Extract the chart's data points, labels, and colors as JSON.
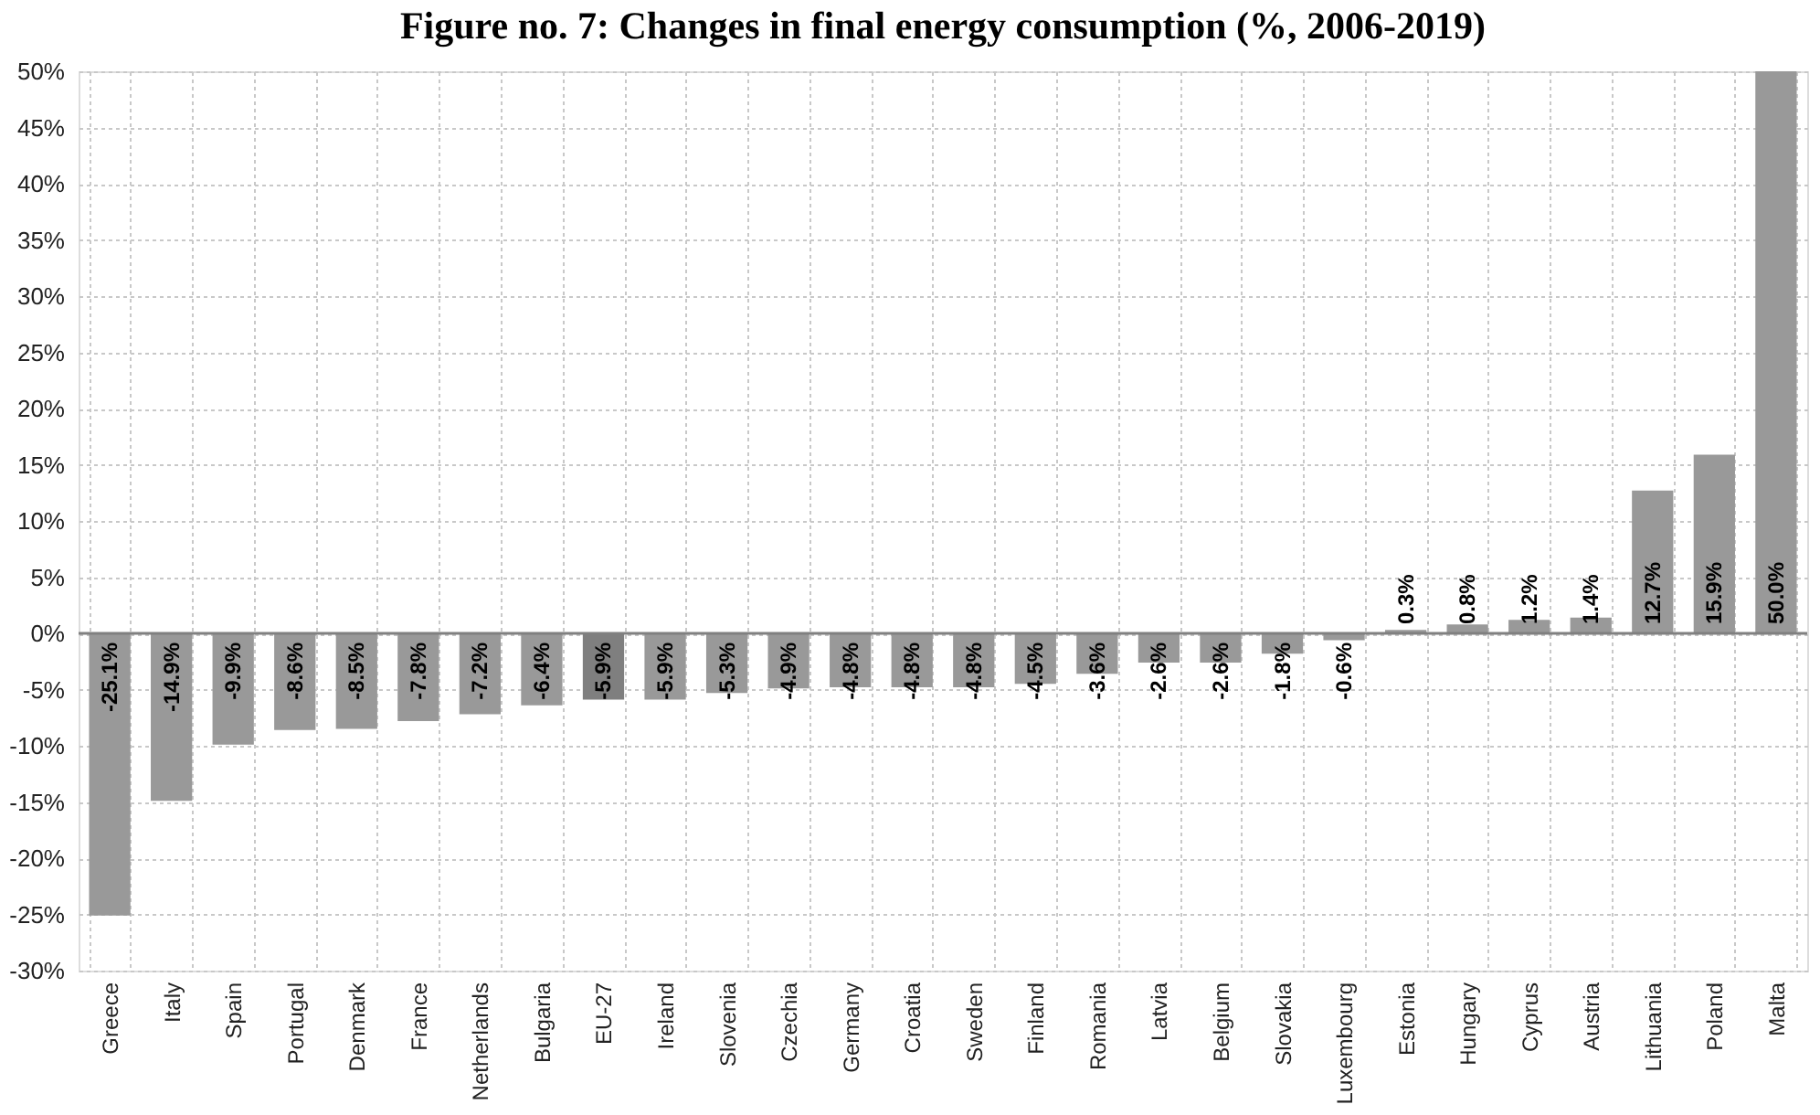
{
  "chart_data": {
    "type": "bar",
    "title": "Figure no. 7: Changes in final energy consumption (%, 2006-2019)",
    "categories": [
      "Greece",
      "Italy",
      "Spain",
      "Portugal",
      "Denmark",
      "France",
      "Netherlands",
      "Bulgaria",
      "EU-27",
      "Ireland",
      "Slovenia",
      "Czechia",
      "Germany",
      "Croatia",
      "Sweden",
      "Finland",
      "Romania",
      "Latvia",
      "Belgium",
      "Slovakia",
      "Luxembourg",
      "Estonia",
      "Hungary",
      "Cyprus",
      "Austria",
      "Lithuania",
      "Poland",
      "Malta"
    ],
    "values": [
      -25.1,
      -14.9,
      -9.9,
      -8.6,
      -8.5,
      -7.8,
      -7.2,
      -6.4,
      -5.9,
      -5.9,
      -5.3,
      -4.9,
      -4.8,
      -4.8,
      -4.8,
      -4.5,
      -3.6,
      -2.6,
      -2.6,
      -1.8,
      -0.6,
      0.3,
      0.8,
      1.2,
      1.4,
      12.7,
      15.9,
      50.0
    ],
    "value_labels": [
      "-25.1%",
      "-14.9%",
      "-9.9%",
      "-8.6%",
      "-8.5%",
      "-7.8%",
      "-7.2%",
      "-6.4%",
      "-5.9%",
      "-5.9%",
      "-5.3%",
      "-4.9%",
      "-4.8%",
      "-4.8%",
      "-4.8%",
      "-4.5%",
      "-3.6%",
      "-2.6%",
      "-2.6%",
      "-1.8%",
      "-0.6%",
      "0.3%",
      "0.8%",
      "1.2%",
      "1.4%",
      "12.7%",
      "15.9%",
      "50.0%"
    ],
    "colors": [
      "#999999",
      "#999999",
      "#999999",
      "#999999",
      "#999999",
      "#999999",
      "#999999",
      "#999999",
      "#7f7f7f",
      "#999999",
      "#999999",
      "#999999",
      "#999999",
      "#999999",
      "#999999",
      "#999999",
      "#999999",
      "#999999",
      "#999999",
      "#999999",
      "#999999",
      "#999999",
      "#999999",
      "#999999",
      "#999999",
      "#999999",
      "#999999",
      "#999999"
    ],
    "ylim": [
      -30,
      50
    ],
    "yticks": [
      {
        "value": -30,
        "label": "-30%"
      },
      {
        "value": -25,
        "label": "-25%"
      },
      {
        "value": -20,
        "label": "-20%"
      },
      {
        "value": -15,
        "label": "-15%"
      },
      {
        "value": -10,
        "label": "-10%"
      },
      {
        "value": -5,
        "label": "-5%"
      },
      {
        "value": 0,
        "label": "0%"
      },
      {
        "value": 5,
        "label": "5%"
      },
      {
        "value": 10,
        "label": "10%"
      },
      {
        "value": 15,
        "label": "15%"
      },
      {
        "value": 20,
        "label": "20%"
      },
      {
        "value": 25,
        "label": "25%"
      },
      {
        "value": 30,
        "label": "30%"
      },
      {
        "value": 35,
        "label": "35%"
      },
      {
        "value": 40,
        "label": "40%"
      },
      {
        "value": 45,
        "label": "45%"
      },
      {
        "value": 50,
        "label": "50%"
      }
    ],
    "grid": true,
    "ref_lines": [
      {
        "axis": "y",
        "value": 0,
        "color": "#808080"
      }
    ]
  }
}
